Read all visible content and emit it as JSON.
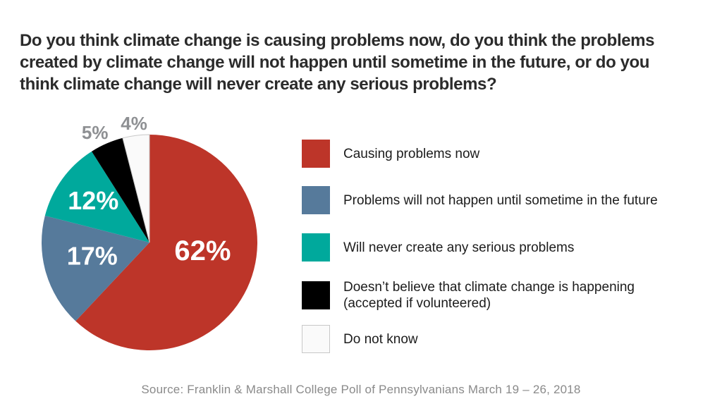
{
  "header": {
    "title_lines": [
      "Do you think climate change is causing problems now, do you think the problems",
      "created by climate change will not happen until sometime in the future, or do you",
      "think climate change will never create any serious problems?"
    ]
  },
  "chart_data": {
    "type": "pie",
    "title": "Do you think climate change is causing problems now, do you think the problems created by climate change will not happen until sometime in the future, or do you think climate change will never create any serious problems?",
    "start_angle": "top, clockwise",
    "legend_position": "right",
    "slices": [
      {
        "legend": "Causing problems now",
        "value": 62,
        "display": "62%",
        "color": "#bd3529",
        "label_color": "#ffffff",
        "label_placement": "inside"
      },
      {
        "legend": "Problems will not happen until sometime in the future",
        "value": 17,
        "display": "17%",
        "color": "#567a9b",
        "label_color": "#ffffff",
        "label_placement": "inside"
      },
      {
        "legend": "Will never create any serious problems",
        "value": 12,
        "display": "12%",
        "color": "#00a99c",
        "label_color": "#ffffff",
        "label_placement": "inside"
      },
      {
        "legend": "Doesn’t believe that climate change is happening",
        "legend2": "(accepted if volunteered)",
        "value": 5,
        "display": "5%",
        "color": "#000000",
        "label_color": "#8e9093",
        "label_placement": "outside"
      },
      {
        "legend": "Do not know",
        "value": 4,
        "display": "4%",
        "color": "#fafafa",
        "stroke": "#c8c8c8",
        "label_color": "#8e9093",
        "label_placement": "outside"
      }
    ],
    "source": "Source: Franklin & Marshall College Poll of Pennsylvanians March 19 – 26, 2018"
  }
}
